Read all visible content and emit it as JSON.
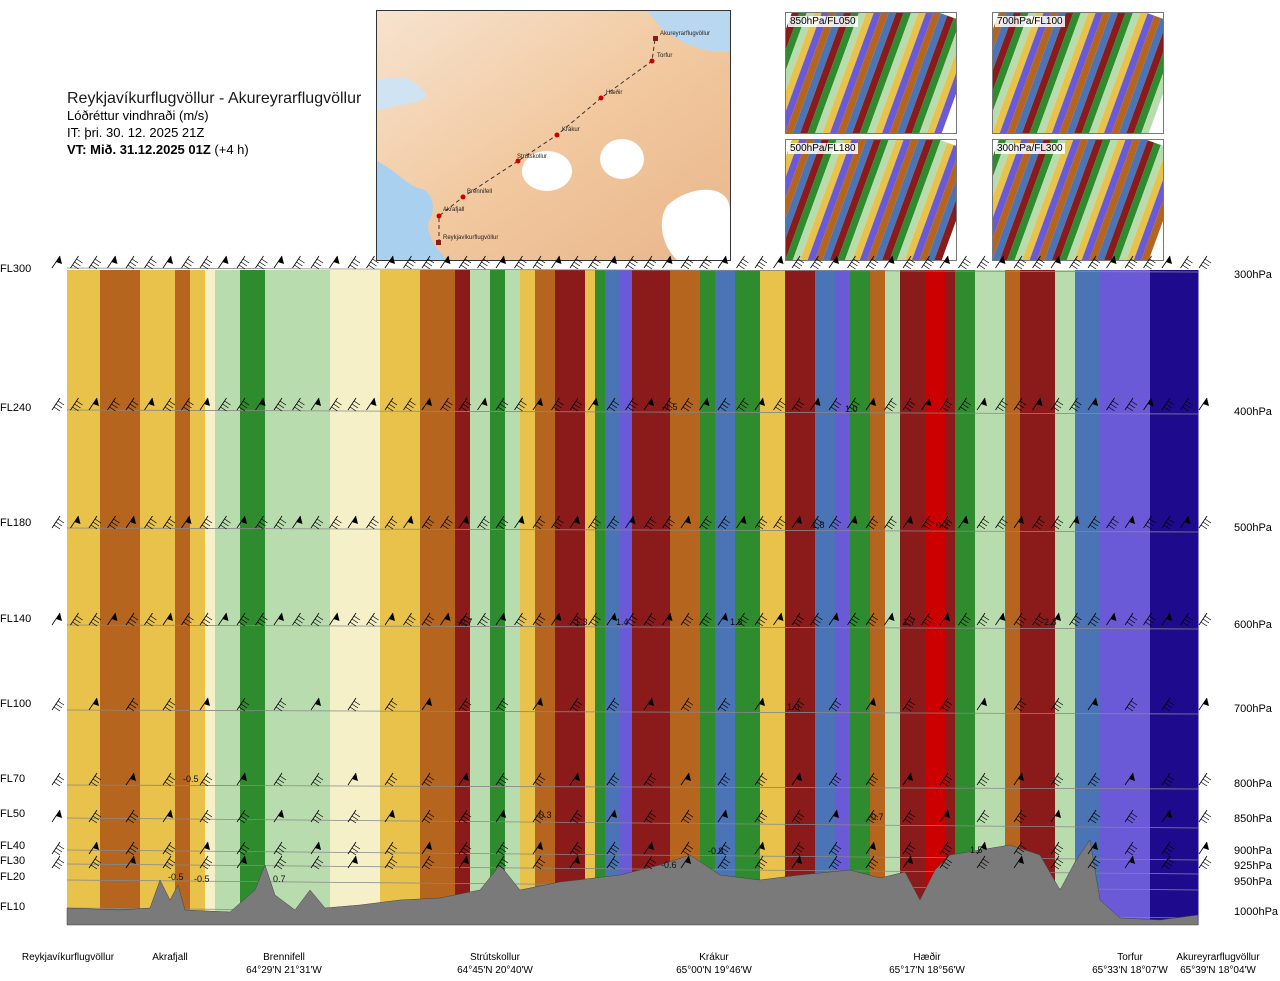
{
  "header": {
    "route": "Reykjavíkurflugvöllur - Akureyrarflugvöllur",
    "variable": "Lóðréttur vindhraði (m/s)",
    "it": "IT: þri. 30. 12. 2025 21Z",
    "vt_bold": "VT: Mið. 31.12.2025 01Z",
    "vt_rest": " (+4 h)"
  },
  "map": {
    "stations": [
      "Akureyrarflugvöllur",
      "Torfur",
      "Hæðir",
      "Krákur",
      "Strútskollur",
      "Brennifell",
      "Akrafjall",
      "Reykjavíkurflugvöllur"
    ]
  },
  "thumbnails": [
    {
      "label": "850hPa/FL050"
    },
    {
      "label": "700hPa/FL100"
    },
    {
      "label": "500hPa/FL180"
    },
    {
      "label": "300hPa/FL300"
    }
  ],
  "levels": [
    {
      "fl": "FL300",
      "p": "300hPa"
    },
    {
      "fl": "FL240",
      "p": "400hPa"
    },
    {
      "fl": "FL180",
      "p": "500hPa"
    },
    {
      "fl": "FL140",
      "p": "600hPa"
    },
    {
      "fl": "FL100",
      "p": "700hPa"
    },
    {
      "fl": "FL70",
      "p": "800hPa"
    },
    {
      "fl": "FL50",
      "p": "850hPa"
    },
    {
      "fl": "FL40",
      "p": "900hPa"
    },
    {
      "fl": "FL30",
      "p": "925hPa"
    },
    {
      "fl": "FL20",
      "p": "950hPa"
    },
    {
      "fl": "FL10",
      "p": "1000hPa"
    }
  ],
  "locations": [
    {
      "name": "Reykjavíkurflugvöllur",
      "coord": ""
    },
    {
      "name": "Akrafjall",
      "coord": ""
    },
    {
      "name": "Brennifell",
      "coord": "64°29'N 21°31'W"
    },
    {
      "name": "Strútskollur",
      "coord": "64°45'N 20°40'W"
    },
    {
      "name": "Krákur",
      "coord": "65°00'N 19°46'W"
    },
    {
      "name": "Hæðir",
      "coord": "65°17'N 18°56'W"
    },
    {
      "name": "Torfur",
      "coord": "65°33'N 18°07'W"
    },
    {
      "name": "Akureyrarflugvöllur",
      "coord": "65°39'N 18°04'W"
    }
  ],
  "chart_data": {
    "type": "heatmap",
    "title": "Lóðréttur vindhraði (m/s)",
    "y_axis_left": [
      "FL300",
      "FL240",
      "FL180",
      "FL140",
      "FL100",
      "FL70",
      "FL50",
      "FL40",
      "FL30",
      "FL20",
      "FL10"
    ],
    "y_axis_right": [
      "300hPa",
      "400hPa",
      "500hPa",
      "600hPa",
      "700hPa",
      "800hPa",
      "850hPa",
      "900hPa",
      "925hPa",
      "950hPa",
      "1000hPa"
    ],
    "x_stations": [
      "Reykjavíkurflugvöllur",
      "Akrafjall",
      "Brennifell",
      "Strútskollur",
      "Krákur",
      "Hæðir",
      "Torfur",
      "Akureyrarflugvöllur"
    ],
    "annotations": [
      "-1.5",
      "1.0",
      "1.8",
      "0.2",
      "-0.7",
      "-1.3",
      "1.4",
      "1.3",
      "1.7",
      "-2.3",
      "1.0",
      "-0.5",
      "-0.3",
      "-0.7",
      "-0.5",
      "-0.5",
      "0.7",
      "-0.6",
      "-0.8",
      "1.5"
    ],
    "colors": {
      "strong_down": "#8b1a1a",
      "down": "#b5651d",
      "weak_down": "#e8c24a",
      "neutral": "#f5f0c8",
      "weak_up": "#b9dcae",
      "up": "#2e8b2e",
      "strong_up": "#4a74b5",
      "very_strong_up": "#6a5ad8",
      "extreme_up": "#1e0a8c",
      "terrain": "#7a7a7a"
    }
  }
}
